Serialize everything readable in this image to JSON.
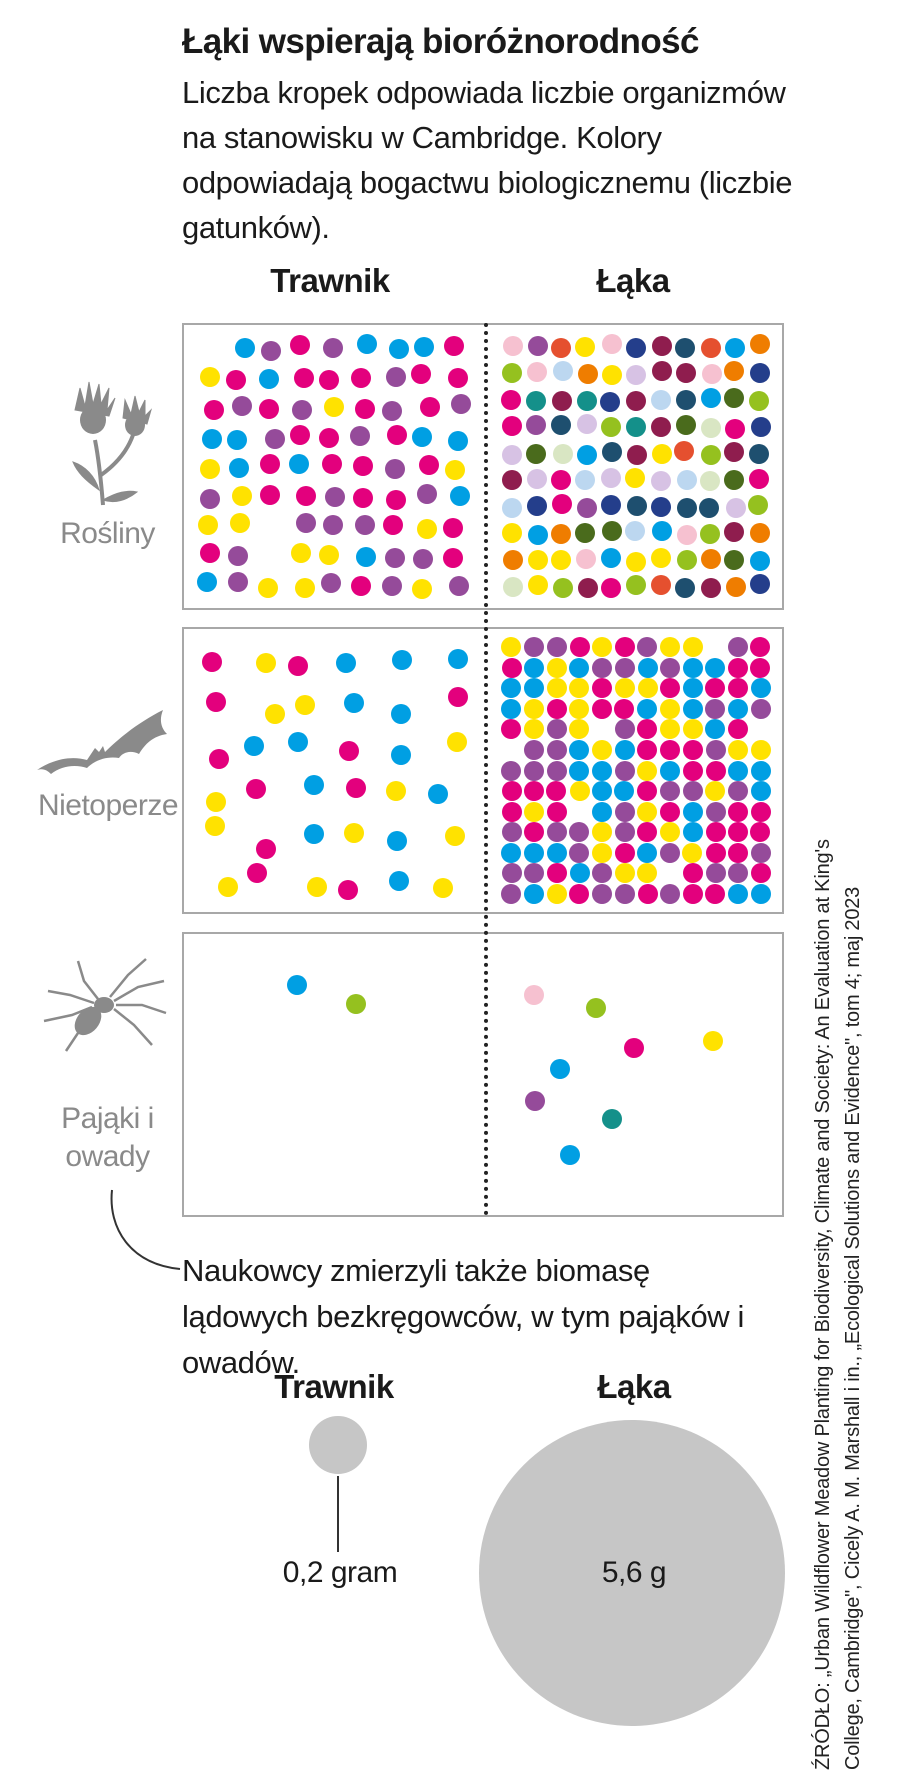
{
  "title": "Łąki wspierają bioróżnorodność",
  "subtitle": "Liczba kropek odpowiada liczbie organizmów na stanowisku w Cambridge. Kolory odpowiadają bogactwu biologicznemu (liczbie gatunków).",
  "columns": [
    "Trawnik",
    "Łąka"
  ],
  "rows": [
    {
      "label": "Rośliny",
      "icon": "thistle-icon"
    },
    {
      "label": "Nietoperze",
      "icon": "bat-icon"
    },
    {
      "label": "Pająki i owady",
      "icon": "spider-icon"
    }
  ],
  "note": "Naukowcy zmierzyli także biomasę lądowych bezkręgowców, w tym pająków i owadów.",
  "biomass": {
    "lawn_label": "Trawnik",
    "lawn_value": "0,2 gram",
    "meadow_label": "Łąka",
    "meadow_value": "5,6 g"
  },
  "source": "ŹRÓDŁO: „Urban Wildflower Meadow Planting for Biodiversity, Climate and Society: An Evaluation at King's College, Cambridge\", Cicely A. M. Marshall i in., „Ecological Solutions and Evidence\", tom 4; maj 2023",
  "colors": {
    "magenta": "#e3007d",
    "cyan": "#009fe3",
    "yellow": "#ffe200",
    "purple": "#954b9a",
    "green": "#95c11f",
    "teal": "#14908a",
    "navy": "#243e8b",
    "orange": "#ef7d00",
    "red": "#e5502f",
    "darkgreen": "#4a6b1c",
    "darkblue": "#1e4f6f",
    "pink": "#f6c1d0",
    "lightblue": "#bcd7f0",
    "lavender": "#d7c2e4",
    "sage": "#d9e6c3",
    "maroon": "#8f1d4e",
    "biomass_gray": "#c6c6c6"
  },
  "chart_data": [
    {
      "type": "scatter",
      "title": "Rośliny",
      "series": [
        {
          "name": "Trawnik",
          "values": {
            "count": 78,
            "species_colors": [
              "magenta",
              "cyan",
              "yellow",
              "purple"
            ]
          }
        },
        {
          "name": "Łąka",
          "values": {
            "count": 110,
            "species_colors": [
              "magenta",
              "cyan",
              "yellow",
              "purple",
              "green",
              "teal",
              "navy",
              "orange",
              "red",
              "darkgreen",
              "darkblue",
              "pink",
              "lightblue",
              "lavender",
              "sage",
              "maroon"
            ]
          }
        }
      ]
    },
    {
      "type": "scatter",
      "title": "Nietoperze",
      "series": [
        {
          "name": "Trawnik",
          "values": {
            "count": 36,
            "species_colors": [
              "magenta",
              "cyan",
              "yellow"
            ]
          }
        },
        {
          "name": "Łąka",
          "values": {
            "count": 150,
            "species_colors": [
              "magenta",
              "cyan",
              "yellow",
              "purple"
            ]
          }
        }
      ]
    },
    {
      "type": "scatter",
      "title": "Pająki i owady",
      "series": [
        {
          "name": "Trawnik",
          "values": {
            "count": 2,
            "species_colors": [
              "cyan",
              "green"
            ]
          }
        },
        {
          "name": "Łąka",
          "values": {
            "count": 8,
            "species_colors": [
              "cyan",
              "magenta",
              "pink",
              "teal",
              "purple",
              "green",
              "yellow"
            ]
          }
        }
      ]
    },
    {
      "type": "bar",
      "title": "Biomasa",
      "categories": [
        "Trawnik",
        "Łąka"
      ],
      "values": [
        0.2,
        5.6
      ],
      "unit": "g"
    }
  ]
}
